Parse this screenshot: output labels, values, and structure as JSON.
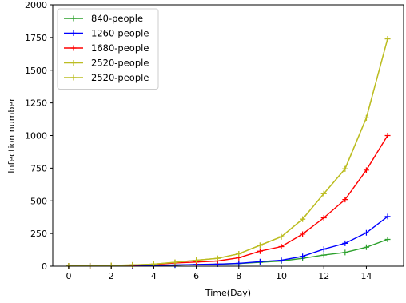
{
  "chart_data": {
    "type": "line",
    "xlabel": "Time(Day)",
    "ylabel": "Infection number",
    "xlim": [
      -0.75,
      15.75
    ],
    "ylim": [
      0,
      2000
    ],
    "xticks": [
      0,
      2,
      4,
      6,
      8,
      10,
      12,
      14
    ],
    "yticks": [
      0,
      250,
      500,
      750,
      1000,
      1250,
      1500,
      1750,
      2000
    ],
    "grid": false,
    "legend_position": "top-left",
    "x": [
      0,
      1,
      2,
      3,
      4,
      5,
      6,
      7,
      8,
      9,
      10,
      11,
      12,
      13,
      14,
      15
    ],
    "series": [
      {
        "name": "840-people",
        "color": "#2ca02c",
        "values": [
          2,
          2,
          3,
          4,
          6,
          8,
          12,
          15,
          20,
          30,
          40,
          60,
          85,
          105,
          145,
          205
        ]
      },
      {
        "name": "1260-people",
        "color": "#0000ff",
        "values": [
          2,
          2,
          3,
          4,
          6,
          9,
          13,
          16,
          22,
          35,
          45,
          75,
          130,
          175,
          255,
          380
        ]
      },
      {
        "name": "1680-people",
        "color": "#ff0000",
        "values": [
          3,
          3,
          5,
          8,
          12,
          25,
          32,
          40,
          65,
          115,
          150,
          245,
          370,
          510,
          735,
          1000
        ]
      },
      {
        "name": "2520-people",
        "color": "#bcbd22",
        "values": [
          3,
          4,
          6,
          10,
          16,
          30,
          45,
          60,
          95,
          160,
          225,
          360,
          555,
          745,
          1135,
          1740
        ]
      },
      {
        "name": "2520-people",
        "color": "#bcbd22",
        "values": [
          3,
          4,
          6,
          10,
          16,
          30,
          45,
          60,
          95,
          160,
          225,
          360,
          555,
          745,
          1135,
          1740
        ]
      }
    ]
  }
}
